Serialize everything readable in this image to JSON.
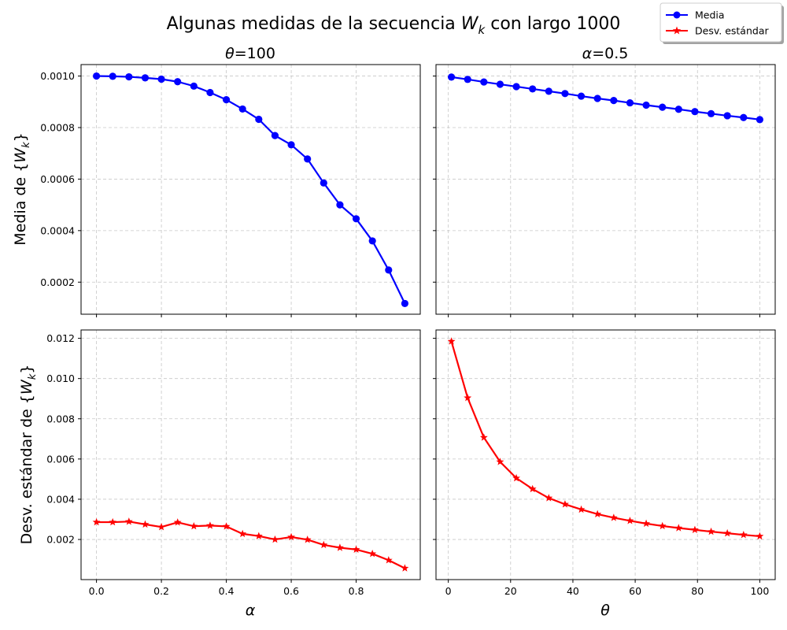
{
  "figure": {
    "title_prefix": "Algunas medidas de la secuencia ",
    "title_var": "W",
    "title_sub": "k",
    "title_suffix": " con largo 1000"
  },
  "legend": {
    "placement": "top-right",
    "items": [
      {
        "label": "Media",
        "color": "#0000ff",
        "marker": "circle"
      },
      {
        "label": "Desv. estándar",
        "color": "#ff0000",
        "marker": "star"
      }
    ]
  },
  "labels": {
    "left_title_var": "θ",
    "left_title_val": "=100",
    "right_title_var": "α",
    "right_title_val": "=0.5",
    "ylabel_top_prefix": "Media de {",
    "ylabel_bottom_prefix": "Desv. estándar de {",
    "ylabel_var": "W",
    "ylabel_sub": "k",
    "ylabel_suffix": "}",
    "xlabel_left": "α",
    "xlabel_right": "θ"
  },
  "chart_data": [
    {
      "type": "line",
      "subplot": "top-left",
      "series": [
        {
          "name": "Media",
          "color": "#0000ff",
          "marker": "circle"
        }
      ],
      "x": [
        0.0,
        0.05,
        0.1,
        0.15,
        0.2,
        0.25,
        0.3,
        0.35,
        0.4,
        0.45,
        0.5,
        0.55,
        0.6,
        0.65,
        0.7,
        0.75,
        0.8,
        0.85,
        0.9,
        0.95
      ],
      "y": [
        0.001,
        0.000999,
        0.000997,
        0.000993,
        0.000988,
        0.000978,
        0.000961,
        0.000936,
        0.000908,
        0.000872,
        0.000832,
        0.000769,
        0.000733,
        0.000678,
        0.000585,
        0.0005,
        0.000446,
        0.00036,
        0.000247,
        0.000117
      ],
      "xlim": [
        -0.0475,
        0.9975
      ],
      "ylim": [
        7.55e-05,
        0.0010445
      ],
      "yticks": [
        0.0002,
        0.0004,
        0.0006,
        0.0008,
        0.001
      ],
      "ytick_labels": [
        "0.0002",
        "0.0004",
        "0.0006",
        "0.0008",
        "0.0010"
      ],
      "grid": true
    },
    {
      "type": "line",
      "subplot": "top-right",
      "series": [
        {
          "name": "Media",
          "color": "#0000ff",
          "marker": "circle"
        }
      ],
      "x": [
        1,
        6.21,
        11.42,
        16.63,
        21.84,
        27.05,
        32.26,
        37.47,
        42.68,
        47.89,
        53.11,
        58.32,
        63.53,
        68.74,
        73.95,
        79.16,
        84.37,
        89.58,
        94.79,
        100
      ],
      "y": [
        0.000996,
        0.000987,
        0.000977,
        0.000968,
        0.000959,
        0.00095,
        0.000941,
        0.000932,
        0.000922,
        0.000913,
        0.000905,
        0.000896,
        0.000887,
        0.000879,
        0.000871,
        0.000862,
        0.000854,
        0.000846,
        0.000839,
        0.000831
      ],
      "xlim": [
        -3.95,
        104.95
      ],
      "ylim": [
        7.55e-05,
        0.0010445
      ],
      "grid": true
    },
    {
      "type": "line",
      "subplot": "bottom-left",
      "series": [
        {
          "name": "Desv. estándar",
          "color": "#ff0000",
          "marker": "star"
        }
      ],
      "x": [
        0.0,
        0.05,
        0.1,
        0.15,
        0.2,
        0.25,
        0.3,
        0.35,
        0.4,
        0.45,
        0.5,
        0.55,
        0.6,
        0.65,
        0.7,
        0.75,
        0.8,
        0.85,
        0.9,
        0.95
      ],
      "y": [
        0.00286,
        0.00286,
        0.00289,
        0.00275,
        0.00262,
        0.00285,
        0.00266,
        0.00269,
        0.00265,
        0.00228,
        0.00217,
        0.002,
        0.00212,
        0.00199,
        0.00173,
        0.00159,
        0.0015,
        0.00129,
        0.00097,
        0.00057
      ],
      "xlim": [
        -0.0475,
        0.9975
      ],
      "xticks": [
        0.0,
        0.2,
        0.4,
        0.6,
        0.8
      ],
      "xtick_labels": [
        "0.0",
        "0.2",
        "0.4",
        "0.6",
        "0.8"
      ],
      "ylim": [
        5e-06,
        0.012415
      ],
      "yticks": [
        0.002,
        0.004,
        0.006,
        0.008,
        0.01,
        0.012
      ],
      "ytick_labels": [
        "0.002",
        "0.004",
        "0.006",
        "0.008",
        "0.010",
        "0.012"
      ],
      "grid": true
    },
    {
      "type": "line",
      "subplot": "bottom-right",
      "series": [
        {
          "name": "Desv. estándar",
          "color": "#ff0000",
          "marker": "star"
        }
      ],
      "x": [
        1,
        6.21,
        11.42,
        16.63,
        21.84,
        27.05,
        32.26,
        37.47,
        42.68,
        47.89,
        53.11,
        58.32,
        63.53,
        68.74,
        73.95,
        79.16,
        84.37,
        89.58,
        94.79,
        100
      ],
      "y": [
        0.01185,
        0.00904,
        0.00707,
        0.00586,
        0.00505,
        0.00451,
        0.00406,
        0.00375,
        0.00349,
        0.00326,
        0.00308,
        0.00293,
        0.00279,
        0.00267,
        0.00257,
        0.00248,
        0.00239,
        0.00231,
        0.00223,
        0.00216
      ],
      "xlim": [
        -3.95,
        104.95
      ],
      "xticks": [
        0,
        20,
        40,
        60,
        80,
        100
      ],
      "xtick_labels": [
        "0",
        "20",
        "40",
        "60",
        "80",
        "100"
      ],
      "ylim": [
        5e-06,
        0.012415
      ],
      "grid": true
    }
  ]
}
